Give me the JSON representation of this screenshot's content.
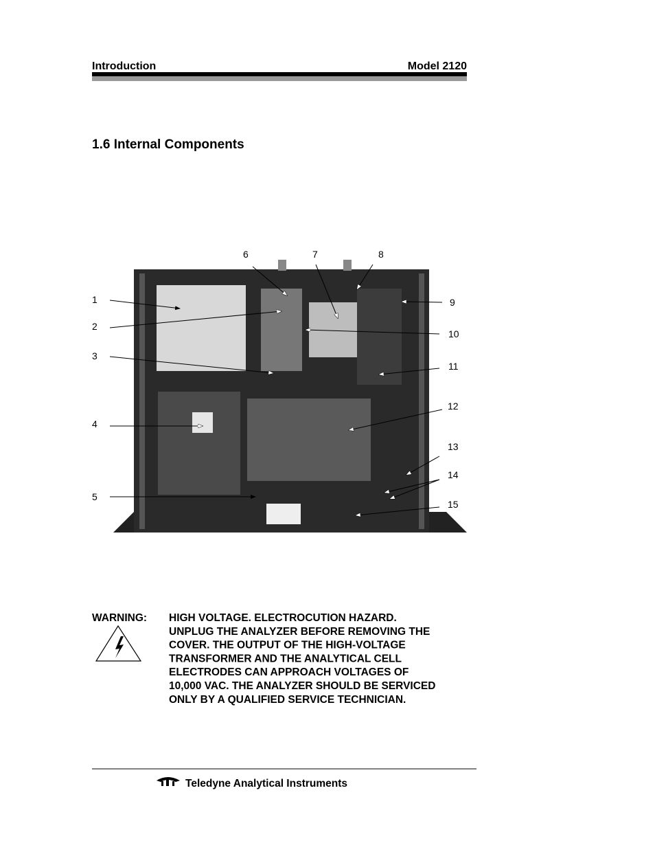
{
  "header": {
    "left": "Introduction",
    "right": "Model 2120"
  },
  "section": {
    "title": "1.6 Internal Components"
  },
  "figure": {
    "callouts": [
      "1",
      "2",
      "3",
      "4",
      "5",
      "6",
      "7",
      "8",
      "9",
      "10",
      "11",
      "12",
      "13",
      "14",
      "15"
    ]
  },
  "warning": {
    "label": "WARNING:",
    "lines": [
      "HIGH VOLTAGE. ELECTROCUTION HAZARD.",
      "UNPLUG THE ANALYZER BEFORE REMOVING THE",
      "COVER. THE OUTPUT OF THE HIGH-VOLTAGE",
      "TRANSFORMER AND THE ANALYTICAL CELL",
      "ELECTRODES CAN APPROACH VOLTAGES OF",
      "10,000 VAC. THE ANALYZER SHOULD BE SERVICED",
      "ONLY BY A QUALIFIED SERVICE TECHNICIAN."
    ]
  },
  "footer": {
    "company": "Teledyne Analytical Instruments"
  }
}
